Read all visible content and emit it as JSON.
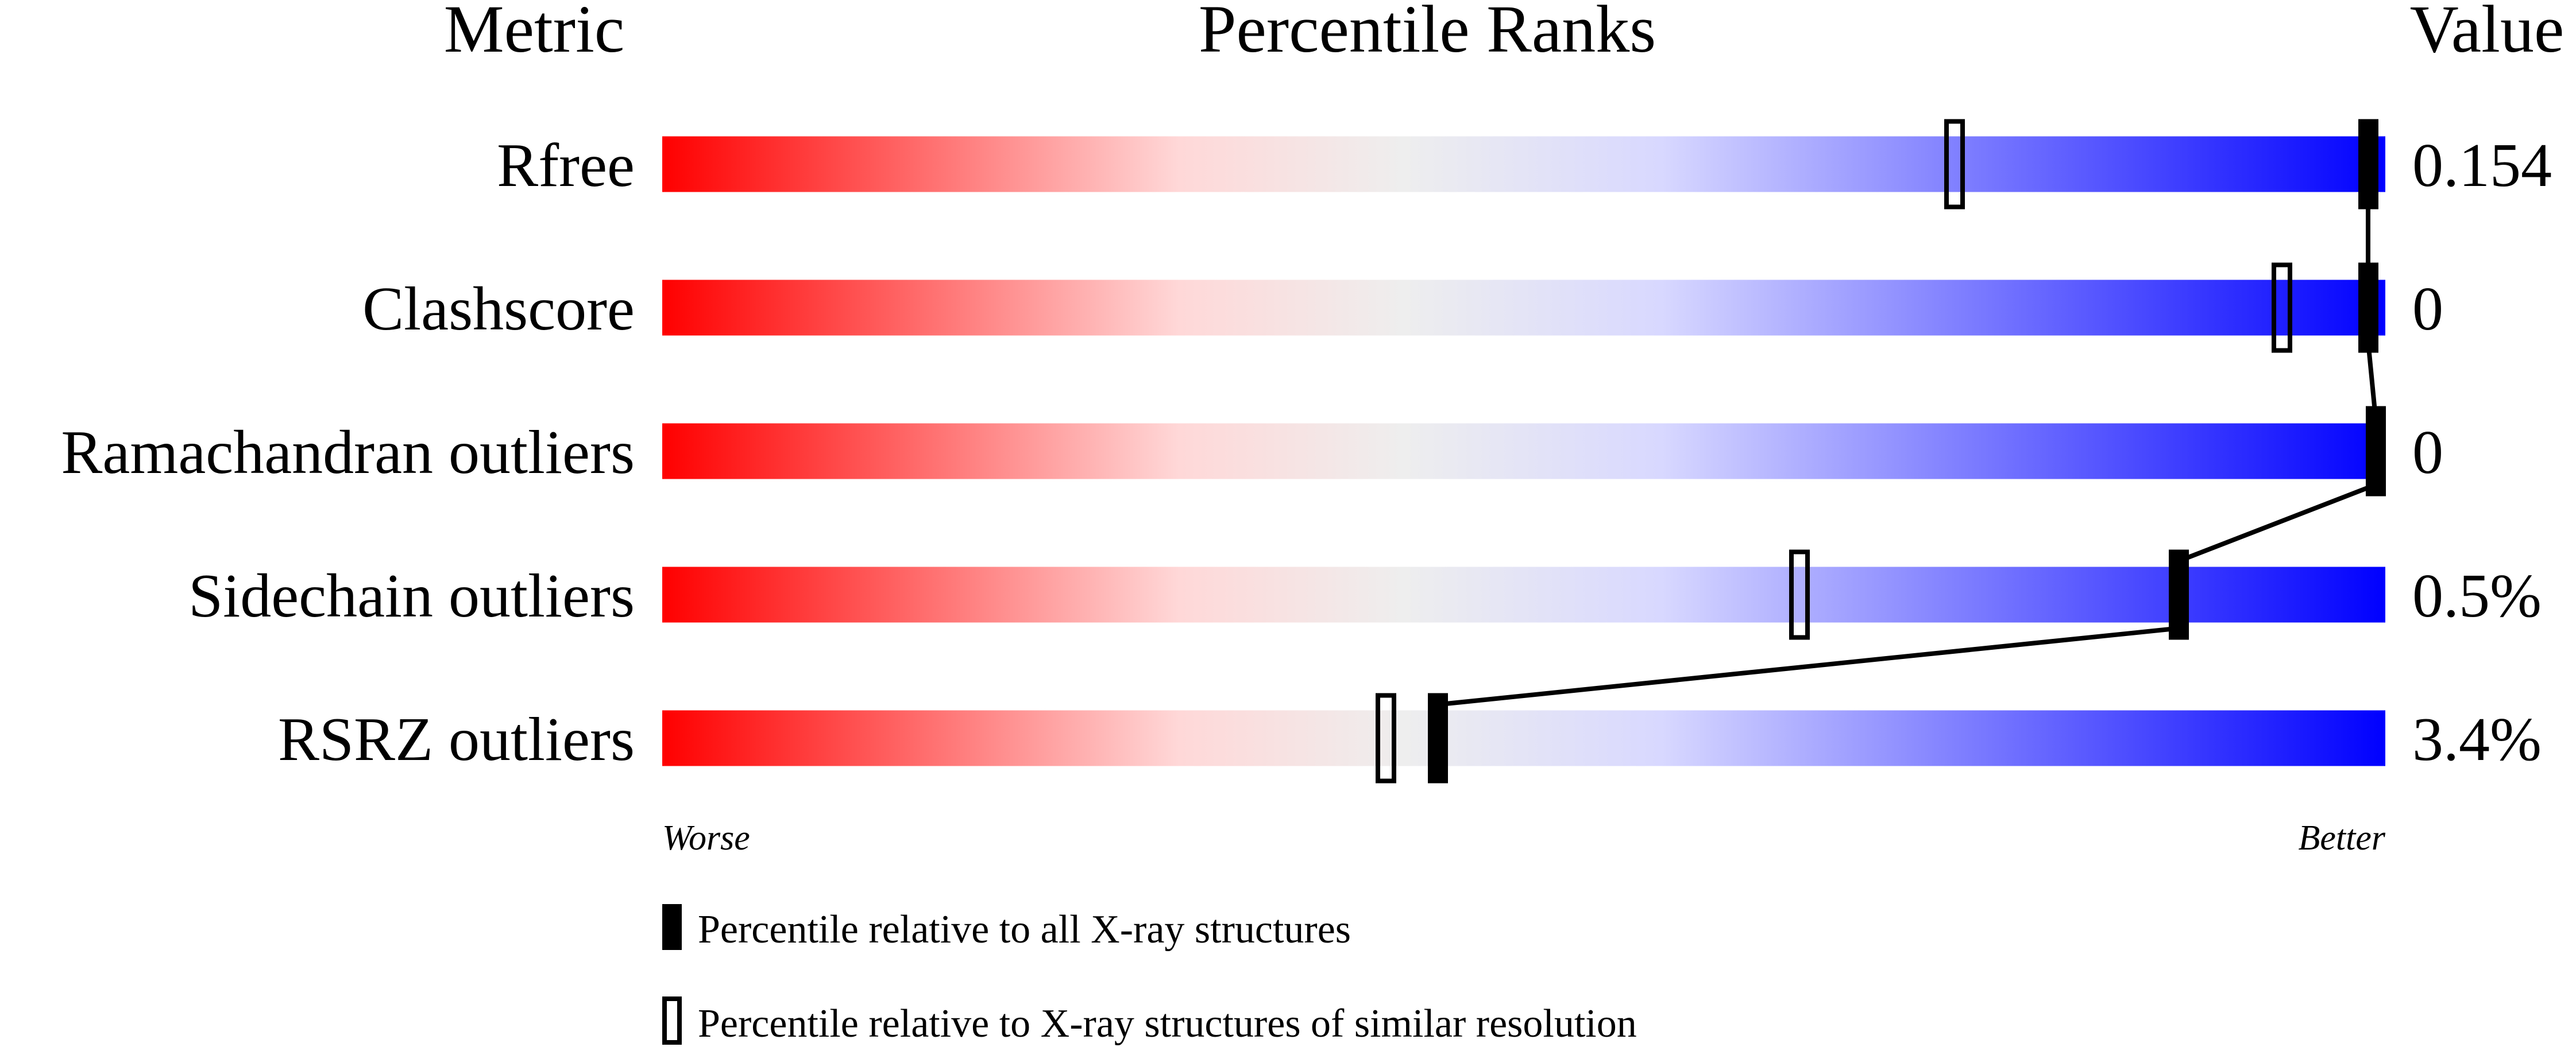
{
  "chart_data": {
    "type": "percentile-slider",
    "headers": {
      "metric": "Metric",
      "ranks": "Percentile Ranks",
      "value": "Value"
    },
    "xlim": [
      0,
      100
    ],
    "axis_labels": {
      "left": "Worse",
      "right": "Better"
    },
    "metrics": [
      {
        "name": "Rfree",
        "value": "0.154",
        "percentile_all": 99,
        "percentile_similar": 75
      },
      {
        "name": "Clashscore",
        "value": "0",
        "percentile_all": 99,
        "percentile_similar": 94
      },
      {
        "name": "Ramachandran outliers",
        "value": "0",
        "percentile_all": 100,
        "percentile_similar": null
      },
      {
        "name": "Sidechain outliers",
        "value": "0.5%",
        "percentile_all": 88,
        "percentile_similar": 66
      },
      {
        "name": "RSRZ outliers",
        "value": "3.4%",
        "percentile_all": 45,
        "percentile_similar": 42
      }
    ],
    "legend": [
      {
        "marker": "filled",
        "label": "Percentile relative to all X-ray structures"
      },
      {
        "marker": "open",
        "label": "Percentile relative to X-ray structures of similar resolution"
      }
    ],
    "gradient_colors": [
      "#ff0000",
      "#ffd8d8",
      "#eeeeee",
      "#d8d8ff",
      "#0000ff"
    ]
  }
}
